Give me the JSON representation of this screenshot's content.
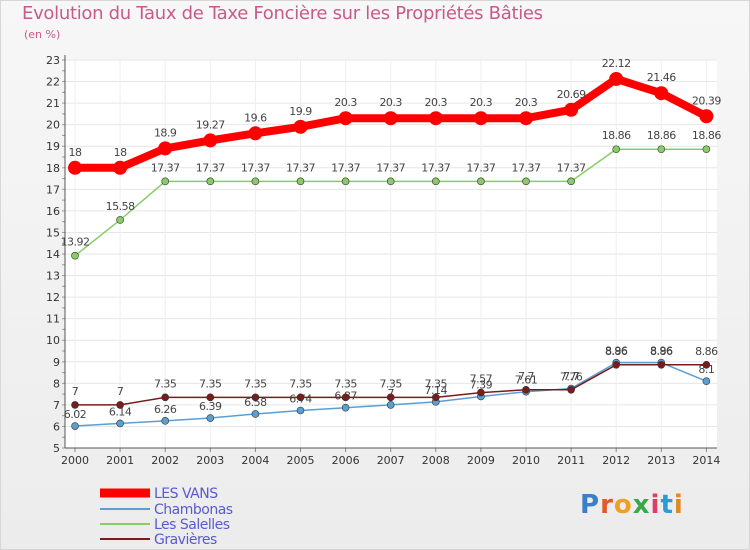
{
  "title": "Evolution du Taux de Taxe Foncière sur les Propriétés Bâties",
  "unit": "(en %)",
  "logo": "Proxiti",
  "chart_data": {
    "type": "line",
    "x": [
      "2000",
      "2001",
      "2002",
      "2003",
      "2004",
      "2005",
      "2006",
      "2007",
      "2008",
      "2009",
      "2010",
      "2011",
      "2012",
      "2013",
      "2014"
    ],
    "ylim": [
      5,
      23
    ],
    "yticks": [
      5,
      6,
      7,
      8,
      9,
      10,
      11,
      12,
      13,
      14,
      15,
      16,
      17,
      18,
      19,
      20,
      21,
      22,
      23
    ],
    "grid": true,
    "legend_position": "bottom-left",
    "series": [
      {
        "name": "LES VANS",
        "color": "#ff0000",
        "values": [
          18,
          18,
          18.9,
          19.27,
          19.6,
          19.9,
          20.3,
          20.3,
          20.3,
          20.3,
          20.3,
          20.69,
          22.12,
          21.46,
          20.39
        ],
        "labels": [
          "18",
          "18",
          "18.9",
          "19.27",
          "19.6",
          "19.9",
          "20.3",
          "20.3",
          "20.3",
          "20.3",
          "20.3",
          "20.69",
          "22.12",
          "21.46",
          "20.39"
        ]
      },
      {
        "name": "Chambonas",
        "color": "#5a9fd4",
        "values": [
          6.02,
          6.14,
          6.26,
          6.39,
          6.58,
          6.74,
          6.87,
          7.0,
          7.14,
          7.39,
          7.61,
          7.76,
          8.96,
          8.96,
          8.1
        ],
        "labels": [
          "6.02",
          "6.14",
          "6.26",
          "6.39",
          "6.58",
          "6.74",
          "6.87",
          "7",
          "7.14",
          "7.39",
          "7.61",
          "7.76",
          "8.96",
          "8.96",
          "8.1"
        ]
      },
      {
        "name": "Les Salelles",
        "color": "#88cc66",
        "values": [
          13.92,
          15.58,
          17.37,
          17.37,
          17.37,
          17.37,
          17.37,
          17.37,
          17.37,
          17.37,
          17.37,
          17.37,
          18.86,
          18.86,
          18.86
        ],
        "labels": [
          "13.92",
          "15.58",
          "17.37",
          "17.37",
          "17.37",
          "17.37",
          "17.37",
          "17.37",
          "17.37",
          "17.37",
          "17.37",
          "17.37",
          "18.86",
          "18.86",
          "18.86"
        ]
      },
      {
        "name": "Gravières",
        "color": "#7a1c1c",
        "values": [
          7,
          7,
          7.35,
          7.35,
          7.35,
          7.35,
          7.35,
          7.35,
          7.35,
          7.57,
          7.7,
          7.7,
          8.86,
          8.86,
          8.86
        ],
        "labels": [
          "7",
          "7",
          "7.35",
          "7.35",
          "7.35",
          "7.35",
          "7.35",
          "7.35",
          "7.35",
          "7.57",
          "7.7",
          "7.7",
          "8.86",
          "8.86",
          "8.86"
        ]
      }
    ]
  }
}
